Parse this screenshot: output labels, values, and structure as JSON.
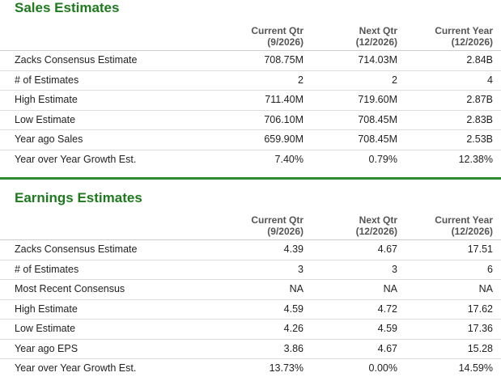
{
  "sales": {
    "title": "Sales Estimates",
    "headers": [
      {
        "l1": "Current Qtr",
        "l2": "(9/2026)"
      },
      {
        "l1": "Next Qtr",
        "l2": "(12/2026)"
      },
      {
        "l1": "Current Year",
        "l2": "(12/2026)"
      }
    ],
    "rows": [
      {
        "label": "Zacks Consensus Estimate",
        "values": [
          "708.75M",
          "714.03M",
          "2.84B"
        ]
      },
      {
        "label": "# of Estimates",
        "values": [
          "2",
          "2",
          "4"
        ]
      },
      {
        "label": "High Estimate",
        "values": [
          "711.40M",
          "719.60M",
          "2.87B"
        ]
      },
      {
        "label": "Low Estimate",
        "values": [
          "706.10M",
          "708.45M",
          "2.83B"
        ]
      },
      {
        "label": "Year ago Sales",
        "values": [
          "659.90M",
          "708.45M",
          "2.53B"
        ]
      },
      {
        "label": "Year over Year Growth Est.",
        "values": [
          "7.40%",
          "0.79%",
          "12.38%"
        ]
      }
    ]
  },
  "earnings": {
    "title": "Earnings Estimates",
    "headers": [
      {
        "l1": "Current Qtr",
        "l2": "(9/2026)"
      },
      {
        "l1": "Next Qtr",
        "l2": "(12/2026)"
      },
      {
        "l1": "Current Year",
        "l2": "(12/2026)"
      }
    ],
    "rows": [
      {
        "label": "Zacks Consensus Estimate",
        "values": [
          "4.39",
          "4.67",
          "17.51"
        ]
      },
      {
        "label": "# of Estimates",
        "values": [
          "3",
          "3",
          "6"
        ]
      },
      {
        "label": "Most Recent Consensus",
        "values": [
          "NA",
          "NA",
          "NA"
        ]
      },
      {
        "label": "High Estimate",
        "values": [
          "4.59",
          "4.72",
          "17.62"
        ]
      },
      {
        "label": "Low Estimate",
        "values": [
          "4.26",
          "4.59",
          "17.36"
        ]
      },
      {
        "label": "Year ago EPS",
        "values": [
          "3.86",
          "4.67",
          "15.28"
        ]
      },
      {
        "label": "Year over Year Growth Est.",
        "values": [
          "13.73%",
          "0.00%",
          "14.59%"
        ]
      }
    ]
  },
  "colors": {
    "title_green": "#1f7a1f",
    "border_green": "#2e8b2e"
  }
}
